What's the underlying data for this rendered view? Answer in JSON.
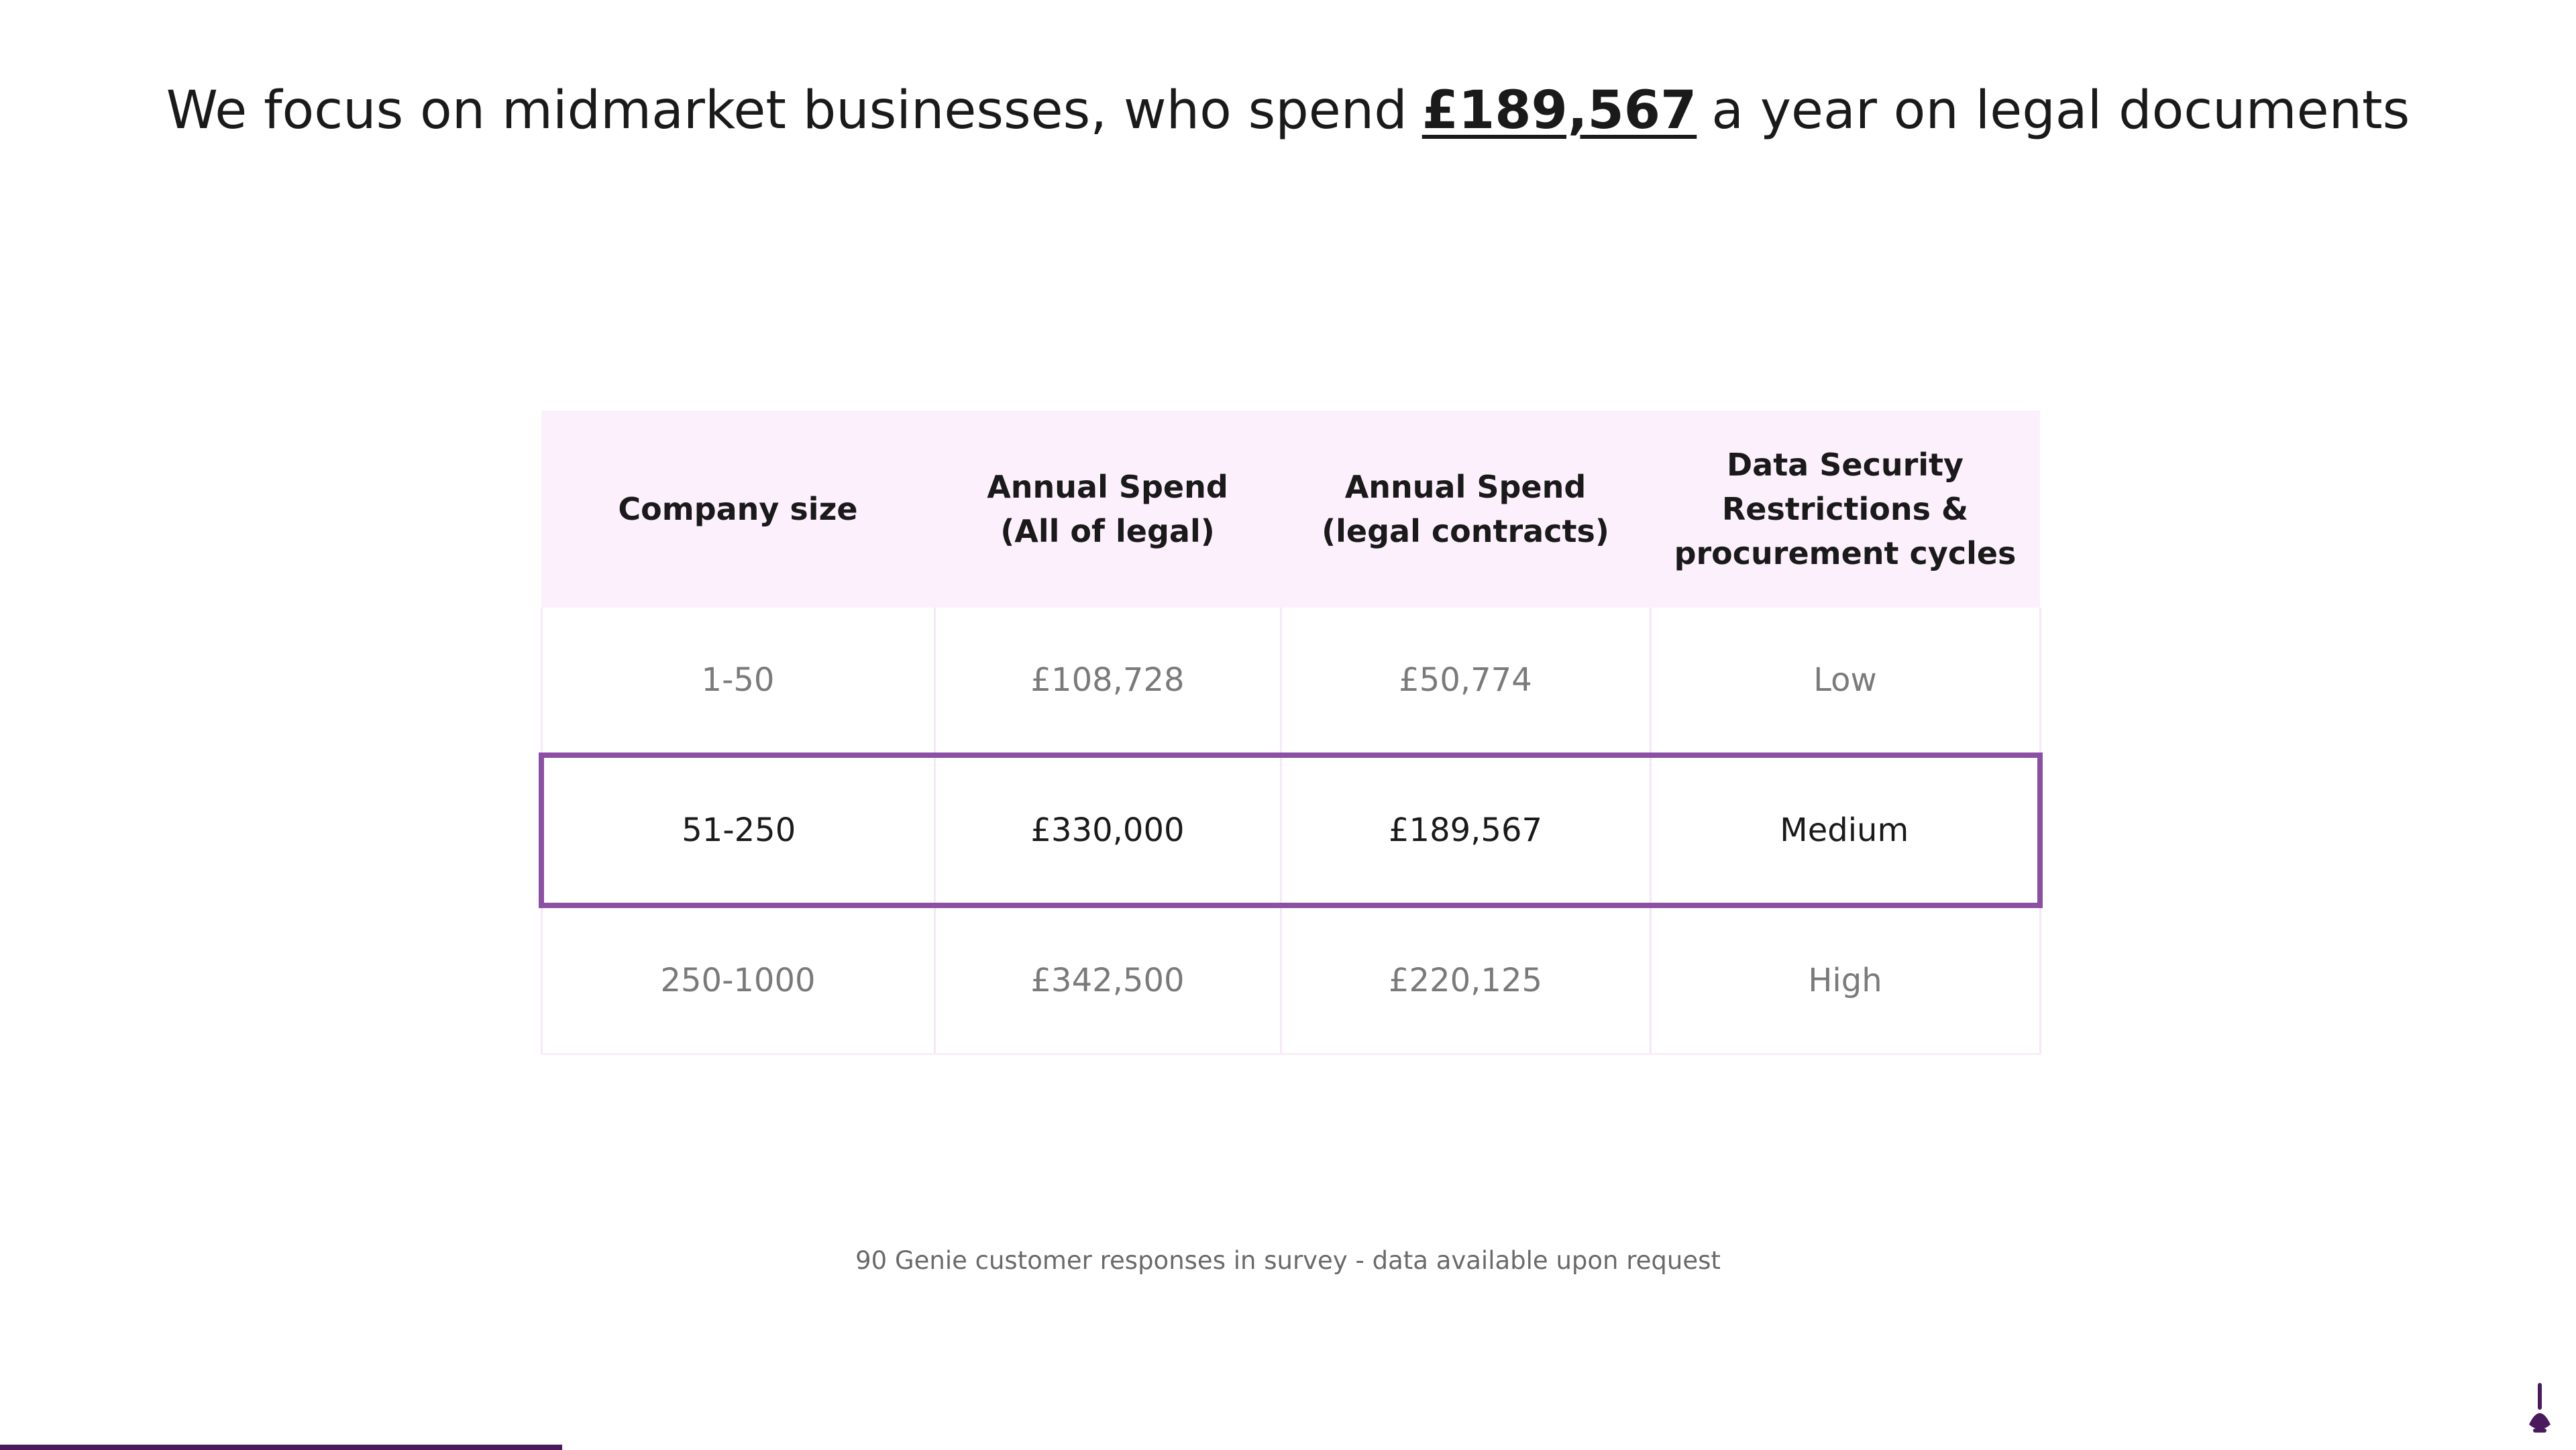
{
  "title": {
    "before": "We focus on midmarket businesses, who spend",
    "emphasis": "£189,567",
    "after": "a year on legal documents"
  },
  "table": {
    "columns": [
      "Company size",
      "Annual Spend (All of legal)",
      "Annual Spend (legal contracts)",
      "Data Security Restrictions & procurement cycles"
    ],
    "rows": [
      [
        "1-50",
        "£108,728",
        "£50,774",
        "Low"
      ],
      [
        "51-250",
        "£330,000",
        "£189,567",
        "Medium"
      ],
      [
        "250-1000",
        "£342,500",
        "£220,125",
        "High"
      ]
    ],
    "highlight_row": 1
  },
  "footnote": "90 Genie customer responses in survey - data available upon request"
}
